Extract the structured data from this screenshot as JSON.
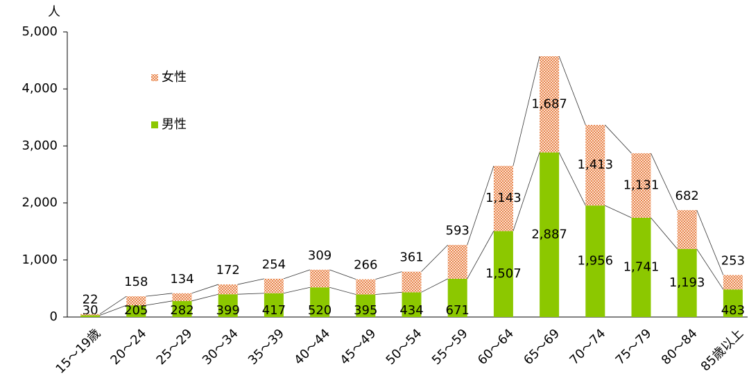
{
  "chart_data": {
    "type": "stacked_bar",
    "y_label": "人",
    "categories": [
      "15～19歳",
      "20～24",
      "25～29",
      "30～34",
      "35～39",
      "40～44",
      "45～49",
      "50～54",
      "55～59",
      "60～64",
      "65～69",
      "70～74",
      "75～79",
      "80～84",
      "85歳以上"
    ],
    "series": [
      {
        "name": "男性",
        "color": "#8cc800",
        "values": [
          30,
          205,
          282,
          399,
          417,
          520,
          395,
          434,
          671,
          1507,
          2887,
          1956,
          1741,
          1193,
          483
        ],
        "value_labels": [
          "30",
          "205",
          "282",
          "399",
          "417",
          "520",
          "395",
          "434",
          "671",
          "1,507",
          "2,887",
          "1,956",
          "1,741",
          "1,193",
          "483"
        ]
      },
      {
        "name": "女性",
        "color": "#e8844c",
        "values": [
          22,
          158,
          134,
          172,
          254,
          309,
          266,
          361,
          593,
          1143,
          1687,
          1413,
          1131,
          682,
          253
        ],
        "value_labels": [
          "22",
          "158",
          "134",
          "172",
          "254",
          "309",
          "266",
          "361",
          "593",
          "1,143",
          "1,687",
          "1,413",
          "1,131",
          "682",
          "253"
        ]
      }
    ],
    "ylim": [
      0,
      5000
    ],
    "yticks": [
      0,
      {
        "value": 1000,
        "label": "1,000"
      },
      {
        "value": 2000,
        "label": "2,000"
      },
      {
        "value": 3000,
        "label": "3,000"
      },
      {
        "value": 4000,
        "label": "4,000"
      },
      {
        "value": 5000,
        "label": "5,000"
      }
    ],
    "legend": "upper left"
  }
}
